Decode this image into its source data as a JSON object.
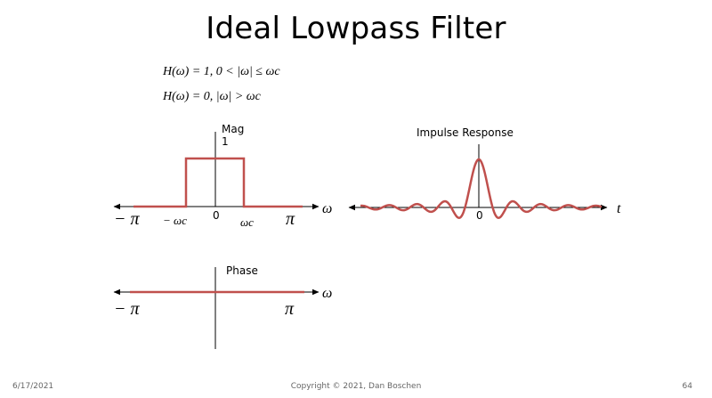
{
  "slide": {
    "title": "Ideal Lowpass Filter",
    "equation_1": "H(ω) = 1,  0 < |ω| ≤ ωc",
    "equation_2": "H(ω) = 0,  |ω| > ωc"
  },
  "magnitude_plot": {
    "label": "Mag",
    "level_label": "1",
    "x_axis_symbol": "ω",
    "tick_neg_pi": "− π",
    "tick_neg_wc": "− ωc",
    "tick_zero": "0",
    "tick_wc": "ωc",
    "tick_pi": "π",
    "level": 1
  },
  "impulse_plot": {
    "label": "Impulse Response",
    "x_axis_symbol": "t",
    "tick_zero": "0"
  },
  "phase_plot": {
    "label": "Phase",
    "x_axis_symbol": "ω",
    "tick_neg_pi": "− π",
    "tick_pi": "π",
    "phase_value": 0
  },
  "curve_color": "#c0504d",
  "footer": {
    "date": "6/17/2021",
    "copyright": "Copyright © 2021, Dan Boschen",
    "page": "64"
  }
}
